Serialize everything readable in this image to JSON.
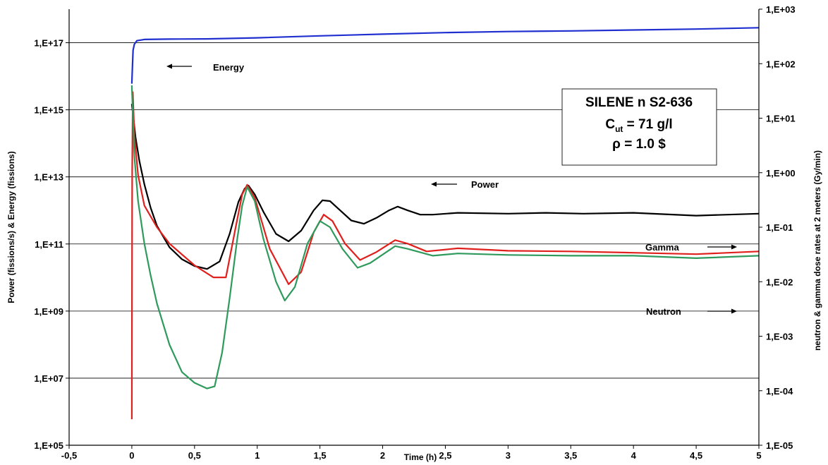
{
  "chart_data": {
    "type": "line",
    "title": "",
    "xlabel": "Time (h)",
    "ylabel": "Power (fissions/s) & Energy (fissions)",
    "y2label": "neutron & gamma dose rates at 2 meters (Gy/min)",
    "xlim": [
      -0.5,
      5
    ],
    "ylim": [
      100000,
      1e+18
    ],
    "y2lim": [
      1e-05,
      1000
    ],
    "yscale": "log",
    "y2scale": "log",
    "grid": "horizontal",
    "x_ticks": [
      -0.5,
      0,
      0.5,
      1,
      1.5,
      2,
      2.5,
      3,
      3.5,
      4,
      4.5,
      5
    ],
    "x_tick_labels": [
      "-0,5",
      "0",
      "0,5",
      "1",
      "1,5",
      "2",
      "2,5",
      "3",
      "3,5",
      "4",
      "4,5",
      "5"
    ],
    "y_ticks": [
      100000,
      10000000,
      1000000000,
      100000000000,
      10000000000000,
      1000000000000000,
      100000000000000000
    ],
    "y_tick_labels": [
      "1,E+05",
      "1,E+07",
      "1,E+09",
      "1,E+11",
      "1,E+13",
      "1,E+15",
      "1,E+17"
    ],
    "y2_ticks": [
      1e-05,
      0.0001,
      0.001,
      0.01,
      0.1,
      1,
      10,
      100,
      1000
    ],
    "y2_tick_labels": [
      "1,E-05",
      "1,E-04",
      "1,E-03",
      "1,E-02",
      "1,E-01",
      "1,E+00",
      "1,E+01",
      "1,E+02",
      "1,E+03"
    ],
    "series": [
      {
        "axis": "left",
        "color": "#1f2fd0",
        "points": [
          [
            0,
            6000000000000000.0
          ],
          [
            0.005,
            2e+16
          ],
          [
            0.01,
            6e+16
          ],
          [
            0.02,
            9e+16
          ],
          [
            0.04,
            1.15e+17
          ],
          [
            0.1,
            1.25e+17
          ],
          [
            0.3,
            1.28e+17
          ],
          [
            0.6,
            1.3e+17
          ],
          [
            1,
            1.4e+17
          ],
          [
            1.5,
            1.6e+17
          ],
          [
            2,
            1.8e+17
          ],
          [
            2.5,
            2e+17
          ],
          [
            3,
            2.15e+17
          ],
          [
            3.5,
            2.25e+17
          ],
          [
            4,
            2.4e+17
          ],
          [
            4.5,
            2.55e+17
          ],
          [
            5,
            2.8e+17
          ]
        ]
      },
      {
        "axis": "left",
        "color": "#000000",
        "points": [
          [
            0,
            1500000000000000.0
          ],
          [
            0.03,
            150000000000000.0
          ],
          [
            0.06,
            30000000000000.0
          ],
          [
            0.1,
            6000000000000.0
          ],
          [
            0.15,
            1200000000000.0
          ],
          [
            0.2,
            350000000000.0
          ],
          [
            0.3,
            80000000000.0
          ],
          [
            0.4,
            35000000000.0
          ],
          [
            0.5,
            22000000000.0
          ],
          [
            0.6,
            18000000000.0
          ],
          [
            0.7,
            30000000000.0
          ],
          [
            0.78,
            200000000000.0
          ],
          [
            0.85,
            1800000000000.0
          ],
          [
            0.9,
            4500000000000.0
          ],
          [
            0.93,
            5500000000000.0
          ],
          [
            0.98,
            3000000000000.0
          ],
          [
            1.05,
            900000000000.0
          ],
          [
            1.15,
            200000000000.0
          ],
          [
            1.25,
            120000000000.0
          ],
          [
            1.35,
            250000000000.0
          ],
          [
            1.45,
            1000000000000.0
          ],
          [
            1.52,
            2000000000000.0
          ],
          [
            1.58,
            1900000000000.0
          ],
          [
            1.65,
            1100000000000.0
          ],
          [
            1.75,
            500000000000.0
          ],
          [
            1.85,
            400000000000.0
          ],
          [
            1.95,
            600000000000.0
          ],
          [
            2.05,
            1000000000000.0
          ],
          [
            2.12,
            1300000000000.0
          ],
          [
            2.2,
            1000000000000.0
          ],
          [
            2.3,
            750000000000.0
          ],
          [
            2.4,
            750000000000.0
          ],
          [
            2.6,
            850000000000.0
          ],
          [
            3,
            800000000000.0
          ],
          [
            3.3,
            850000000000.0
          ],
          [
            3.6,
            800000000000.0
          ],
          [
            4,
            850000000000.0
          ],
          [
            4.5,
            700000000000.0
          ],
          [
            5,
            800000000000.0
          ]
        ]
      },
      {
        "axis": "right",
        "color": "#e0201c",
        "points": [
          [
            0,
            3e-05
          ],
          [
            0.003,
            1
          ],
          [
            0.008,
            30
          ],
          [
            0.02,
            5
          ],
          [
            0.05,
            0.9
          ],
          [
            0.1,
            0.25
          ],
          [
            0.2,
            0.1
          ],
          [
            0.3,
            0.05
          ],
          [
            0.5,
            0.02
          ],
          [
            0.65,
            0.012
          ],
          [
            0.75,
            0.012
          ],
          [
            0.82,
            0.08
          ],
          [
            0.88,
            0.4
          ],
          [
            0.92,
            0.6
          ],
          [
            0.98,
            0.35
          ],
          [
            1.1,
            0.04
          ],
          [
            1.25,
            0.009
          ],
          [
            1.35,
            0.015
          ],
          [
            1.45,
            0.08
          ],
          [
            1.53,
            0.17
          ],
          [
            1.6,
            0.13
          ],
          [
            1.7,
            0.05
          ],
          [
            1.82,
            0.025
          ],
          [
            1.95,
            0.035
          ],
          [
            2.1,
            0.058
          ],
          [
            2.2,
            0.05
          ],
          [
            2.35,
            0.036
          ],
          [
            2.6,
            0.041
          ],
          [
            3,
            0.037
          ],
          [
            3.5,
            0.036
          ],
          [
            4,
            0.034
          ],
          [
            4.5,
            0.032
          ],
          [
            5,
            0.036
          ]
        ]
      },
      {
        "axis": "right",
        "color": "#2e9a5c",
        "points": [
          [
            0,
            40
          ],
          [
            0.02,
            2
          ],
          [
            0.05,
            0.3
          ],
          [
            0.1,
            0.05
          ],
          [
            0.15,
            0.013
          ],
          [
            0.2,
            0.004
          ],
          [
            0.3,
            0.0007
          ],
          [
            0.4,
            0.00022
          ],
          [
            0.5,
            0.00014
          ],
          [
            0.6,
            0.00011
          ],
          [
            0.66,
            0.00012
          ],
          [
            0.72,
            0.0005
          ],
          [
            0.78,
            0.005
          ],
          [
            0.84,
            0.06
          ],
          [
            0.88,
            0.25
          ],
          [
            0.92,
            0.55
          ],
          [
            0.98,
            0.3
          ],
          [
            1.05,
            0.06
          ],
          [
            1.15,
            0.01
          ],
          [
            1.22,
            0.0045
          ],
          [
            1.3,
            0.008
          ],
          [
            1.4,
            0.05
          ],
          [
            1.5,
            0.13
          ],
          [
            1.58,
            0.1
          ],
          [
            1.68,
            0.04
          ],
          [
            1.8,
            0.018
          ],
          [
            1.9,
            0.022
          ],
          [
            2.1,
            0.045
          ],
          [
            2.2,
            0.04
          ],
          [
            2.4,
            0.03
          ],
          [
            2.6,
            0.033
          ],
          [
            3,
            0.031
          ],
          [
            3.5,
            0.03
          ],
          [
            4,
            0.03
          ],
          [
            4.5,
            0.027
          ],
          [
            5,
            0.03
          ]
        ]
      }
    ],
    "annotations": {
      "energy": "Energy",
      "power": "Power",
      "gamma": "Gamma",
      "neutron": "Neutron",
      "box_line1": "SILENE n  S2-636",
      "box_c": "C",
      "box_c_sub": "ut",
      "box_c_value": " = 71 g/l",
      "box_line3": "ρ = 1.0 $"
    }
  }
}
